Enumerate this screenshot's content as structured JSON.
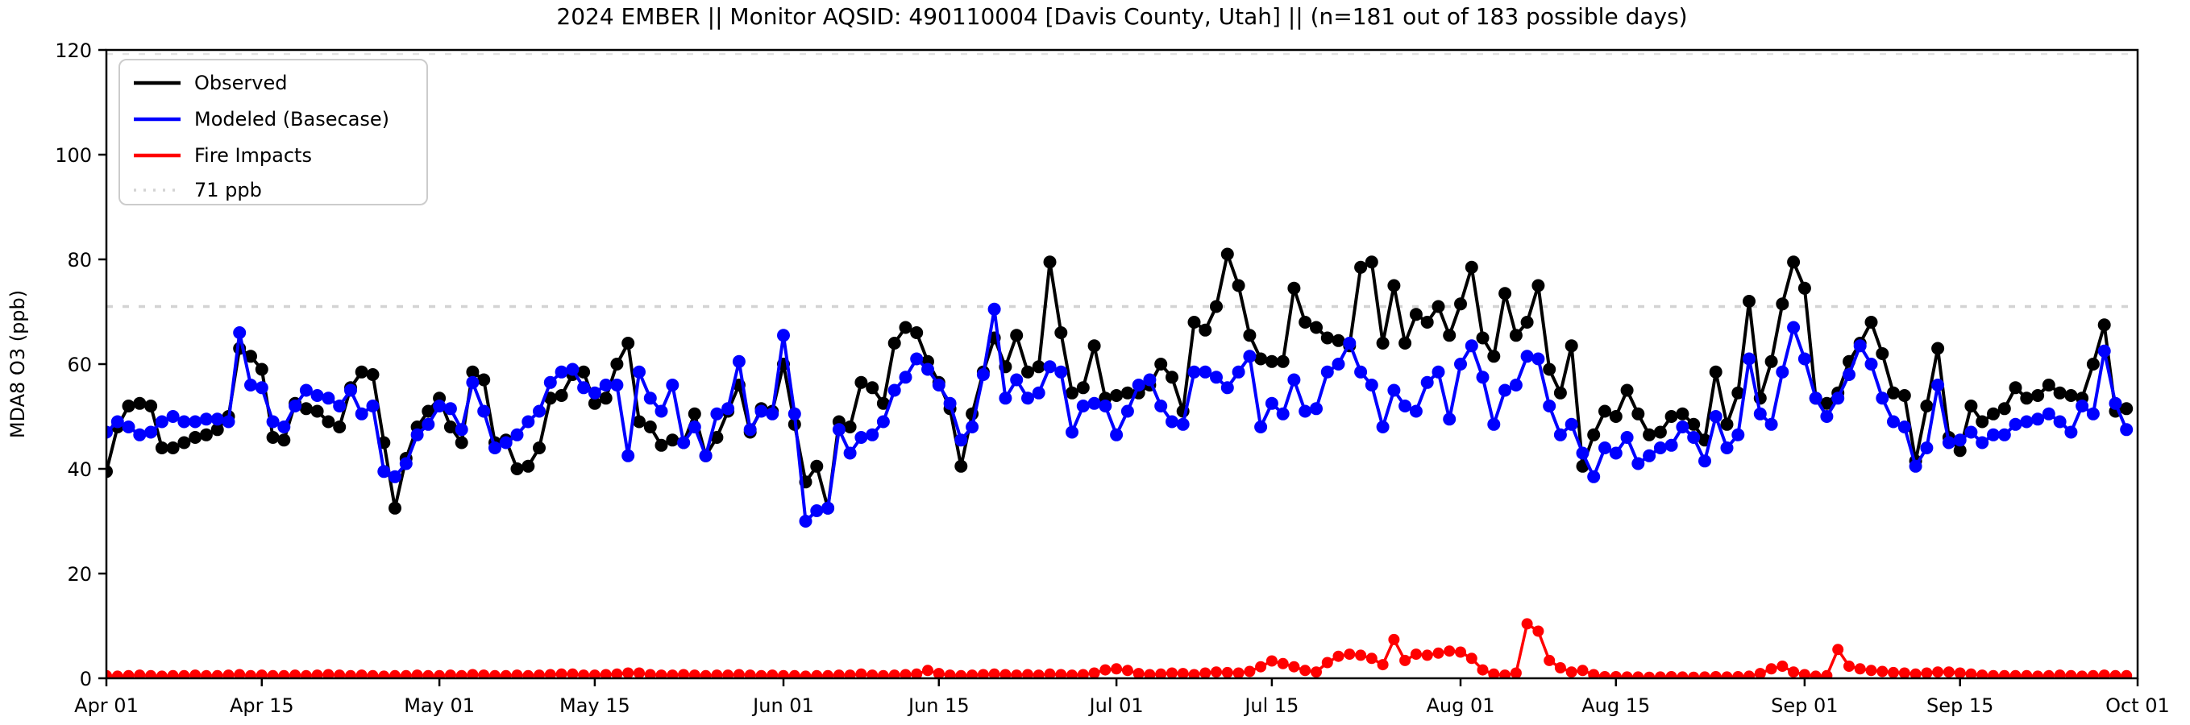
{
  "chart_data": {
    "type": "line",
    "title": "2024 EMBER || Monitor AQSID: 490110004 [Davis County, Utah] || (n=181 out of 183 possible days)",
    "ylabel": "MDA8 O3 (ppb)",
    "xlabel": "",
    "ylim": [
      0,
      120
    ],
    "y_ticks": [
      0,
      20,
      40,
      60,
      80,
      100,
      120
    ],
    "n_days": 183,
    "x_range_note": "daily values, Apr 01 through Sep 30 2024; axis extends to Oct 01",
    "x_ticks": [
      {
        "label": "Apr 01",
        "day": 0
      },
      {
        "label": "Apr 15",
        "day": 14
      },
      {
        "label": "May 01",
        "day": 30
      },
      {
        "label": "May 15",
        "day": 44
      },
      {
        "label": "Jun 01",
        "day": 61
      },
      {
        "label": "Jun 15",
        "day": 75
      },
      {
        "label": "Jul 01",
        "day": 91
      },
      {
        "label": "Jul 15",
        "day": 105
      },
      {
        "label": "Aug 01",
        "day": 122
      },
      {
        "label": "Aug 15",
        "day": 136
      },
      {
        "label": "Sep 01",
        "day": 153
      },
      {
        "label": "Sep 15",
        "day": 167
      },
      {
        "label": "Oct 01",
        "day": 183
      }
    ],
    "threshold": {
      "value": 71,
      "label": "71 ppb",
      "color": "#d3d3d3"
    },
    "legend_position": "upper-left",
    "grid": false,
    "series": [
      {
        "name": "Observed",
        "color": "#000000",
        "values": [
          39.5,
          48,
          52,
          52.5,
          52,
          44,
          44,
          45,
          46,
          46.5,
          47.5,
          50,
          63,
          61.5,
          59,
          46,
          45.5,
          52.5,
          51.5,
          51,
          49,
          48,
          55.5,
          58.5,
          58,
          45,
          32.5,
          42,
          48,
          51,
          53.5,
          48,
          45,
          58.5,
          57,
          45,
          45.5,
          40,
          40.5,
          44,
          53.5,
          54,
          58,
          58.5,
          52.5,
          53.5,
          60,
          64,
          49,
          48,
          44.5,
          45.5,
          45,
          50.5,
          42.5,
          46,
          51,
          56,
          47,
          51.5,
          51,
          60,
          48.5,
          37.5,
          40.5,
          32.5,
          49,
          48,
          56.5,
          55.5,
          52.5,
          64,
          67,
          66,
          60.5,
          56.5,
          51.5,
          40.5,
          50.5,
          58.5,
          65,
          59.5,
          65.5,
          58.5,
          59.5,
          79.5,
          66,
          54.5,
          55.5,
          63.5,
          53.5,
          54,
          54.5,
          54.5,
          56,
          60,
          57.5,
          51,
          68,
          66.5,
          71,
          81,
          75,
          65.5,
          61,
          60.5,
          60.5,
          74.5,
          68,
          67,
          65,
          64.5,
          63.5,
          78.5,
          79.5,
          64,
          75,
          64,
          69.5,
          68,
          71,
          65.5,
          71.5,
          78.5,
          65,
          61.5,
          73.5,
          65.5,
          68,
          75,
          59,
          54.5,
          63.5,
          40.5,
          46.5,
          51,
          50,
          55,
          50.5,
          46.5,
          47,
          50,
          50.5,
          48.5,
          45.5,
          58.5,
          48.5,
          54.5,
          72,
          53.5,
          60.5,
          71.5,
          79.5,
          74.5,
          53.5,
          52.5,
          54.5,
          60.5,
          64,
          68,
          62,
          54.5,
          54,
          41.5,
          52,
          63,
          46,
          43.5,
          52,
          49,
          50.5,
          51.5,
          55.5,
          53.5,
          54,
          56,
          54.5,
          54,
          53.5,
          60,
          67.5,
          51,
          51.5
        ]
      },
      {
        "name": "Modeled (Basecase)",
        "color": "#0000ff",
        "values": [
          47,
          49,
          48,
          46.5,
          47,
          49,
          50,
          49,
          49,
          49.5,
          49.5,
          49,
          66,
          56,
          55.5,
          49,
          48,
          52,
          55,
          54,
          53.5,
          52,
          55,
          50.5,
          52,
          39.5,
          38.5,
          41,
          46.5,
          48.5,
          52,
          51.5,
          47.5,
          56.5,
          51,
          44,
          45,
          46.5,
          49,
          51,
          56.5,
          58.5,
          59,
          55.5,
          54.5,
          56,
          56,
          42.5,
          58.5,
          53.5,
          51,
          56,
          45,
          48,
          42.5,
          50.5,
          51.5,
          60.5,
          47.5,
          51,
          50.5,
          65.5,
          50.5,
          30,
          32,
          32.5,
          47.5,
          43,
          46,
          46.5,
          49,
          55,
          57.5,
          61,
          59,
          56,
          52.5,
          45.5,
          48,
          58,
          70.5,
          53.5,
          57,
          53.5,
          54.5,
          59.5,
          58.5,
          47,
          52,
          52.5,
          52,
          46.5,
          51,
          56,
          57,
          52,
          49,
          48.5,
          58.5,
          58.5,
          57.5,
          55.5,
          58.5,
          61.5,
          48,
          52.5,
          50.5,
          57,
          51,
          51.5,
          58.5,
          60,
          64,
          58.5,
          56,
          48,
          55,
          52,
          51,
          56.5,
          58.5,
          49.5,
          60,
          63.5,
          57.5,
          48.5,
          55,
          56,
          61.5,
          61,
          52,
          46.5,
          48.5,
          43,
          38.5,
          44,
          43,
          46,
          41,
          42.5,
          44,
          44.5,
          48,
          46,
          41.5,
          50,
          44,
          46.5,
          61,
          50.5,
          48.5,
          58.5,
          67,
          61,
          53.5,
          50,
          53.5,
          58,
          63.5,
          60,
          53.5,
          49,
          48,
          40.5,
          44,
          56,
          45,
          45.5,
          47,
          45,
          46.5,
          46.5,
          48.5,
          49,
          49.5,
          50.5,
          49,
          47,
          52,
          50.5,
          62.5,
          52.5,
          47.5
        ]
      },
      {
        "name": "Fire Impacts",
        "color": "#ff0000",
        "values": [
          0.5,
          0.4,
          0.5,
          0.6,
          0.5,
          0.4,
          0.5,
          0.5,
          0.6,
          0.5,
          0.5,
          0.6,
          0.7,
          0.5,
          0.6,
          0.5,
          0.5,
          0.6,
          0.5,
          0.6,
          0.7,
          0.6,
          0.5,
          0.6,
          0.5,
          0.4,
          0.5,
          0.5,
          0.6,
          0.5,
          0.5,
          0.6,
          0.5,
          0.7,
          0.6,
          0.5,
          0.5,
          0.6,
          0.5,
          0.6,
          0.7,
          0.8,
          0.8,
          0.6,
          0.6,
          0.7,
          0.8,
          1.0,
          1.0,
          0.7,
          0.6,
          0.6,
          0.7,
          0.6,
          0.5,
          0.6,
          0.6,
          0.7,
          0.6,
          0.5,
          0.6,
          0.5,
          0.5,
          0.4,
          0.5,
          0.5,
          0.6,
          0.6,
          0.8,
          0.6,
          0.5,
          0.6,
          0.7,
          0.8,
          1.5,
          0.9,
          0.6,
          0.5,
          0.6,
          0.7,
          0.8,
          0.7,
          0.6,
          0.7,
          0.6,
          0.8,
          0.7,
          0.6,
          0.7,
          1.0,
          1.6,
          1.8,
          1.5,
          0.9,
          0.7,
          0.8,
          1.0,
          0.9,
          0.7,
          1.0,
          1.2,
          1.1,
          1.0,
          1.3,
          2.2,
          3.3,
          2.8,
          2.2,
          1.5,
          1.2,
          3.0,
          4.2,
          4.6,
          4.4,
          3.8,
          2.6,
          7.4,
          3.4,
          4.6,
          4.4,
          4.8,
          5.2,
          5.0,
          3.8,
          1.6,
          0.8,
          0.6,
          1.0,
          10.4,
          9.0,
          3.4,
          2.0,
          1.2,
          1.5,
          0.7,
          0.3,
          0.3,
          0.25,
          0.25,
          0.2,
          0.25,
          0.3,
          0.25,
          0.2,
          0.25,
          0.3,
          0.25,
          0.3,
          0.4,
          0.9,
          1.8,
          2.3,
          1.2,
          0.7,
          0.4,
          0.5,
          5.5,
          2.3,
          1.8,
          1.5,
          1.3,
          1.1,
          1.0,
          0.8,
          1.0,
          1.2,
          1.2,
          1.0,
          0.8,
          0.6,
          0.5,
          0.5,
          0.5,
          0.5,
          0.4,
          0.5,
          0.6,
          0.5,
          0.4,
          0.5,
          0.6,
          0.5,
          0.5
        ]
      }
    ]
  }
}
